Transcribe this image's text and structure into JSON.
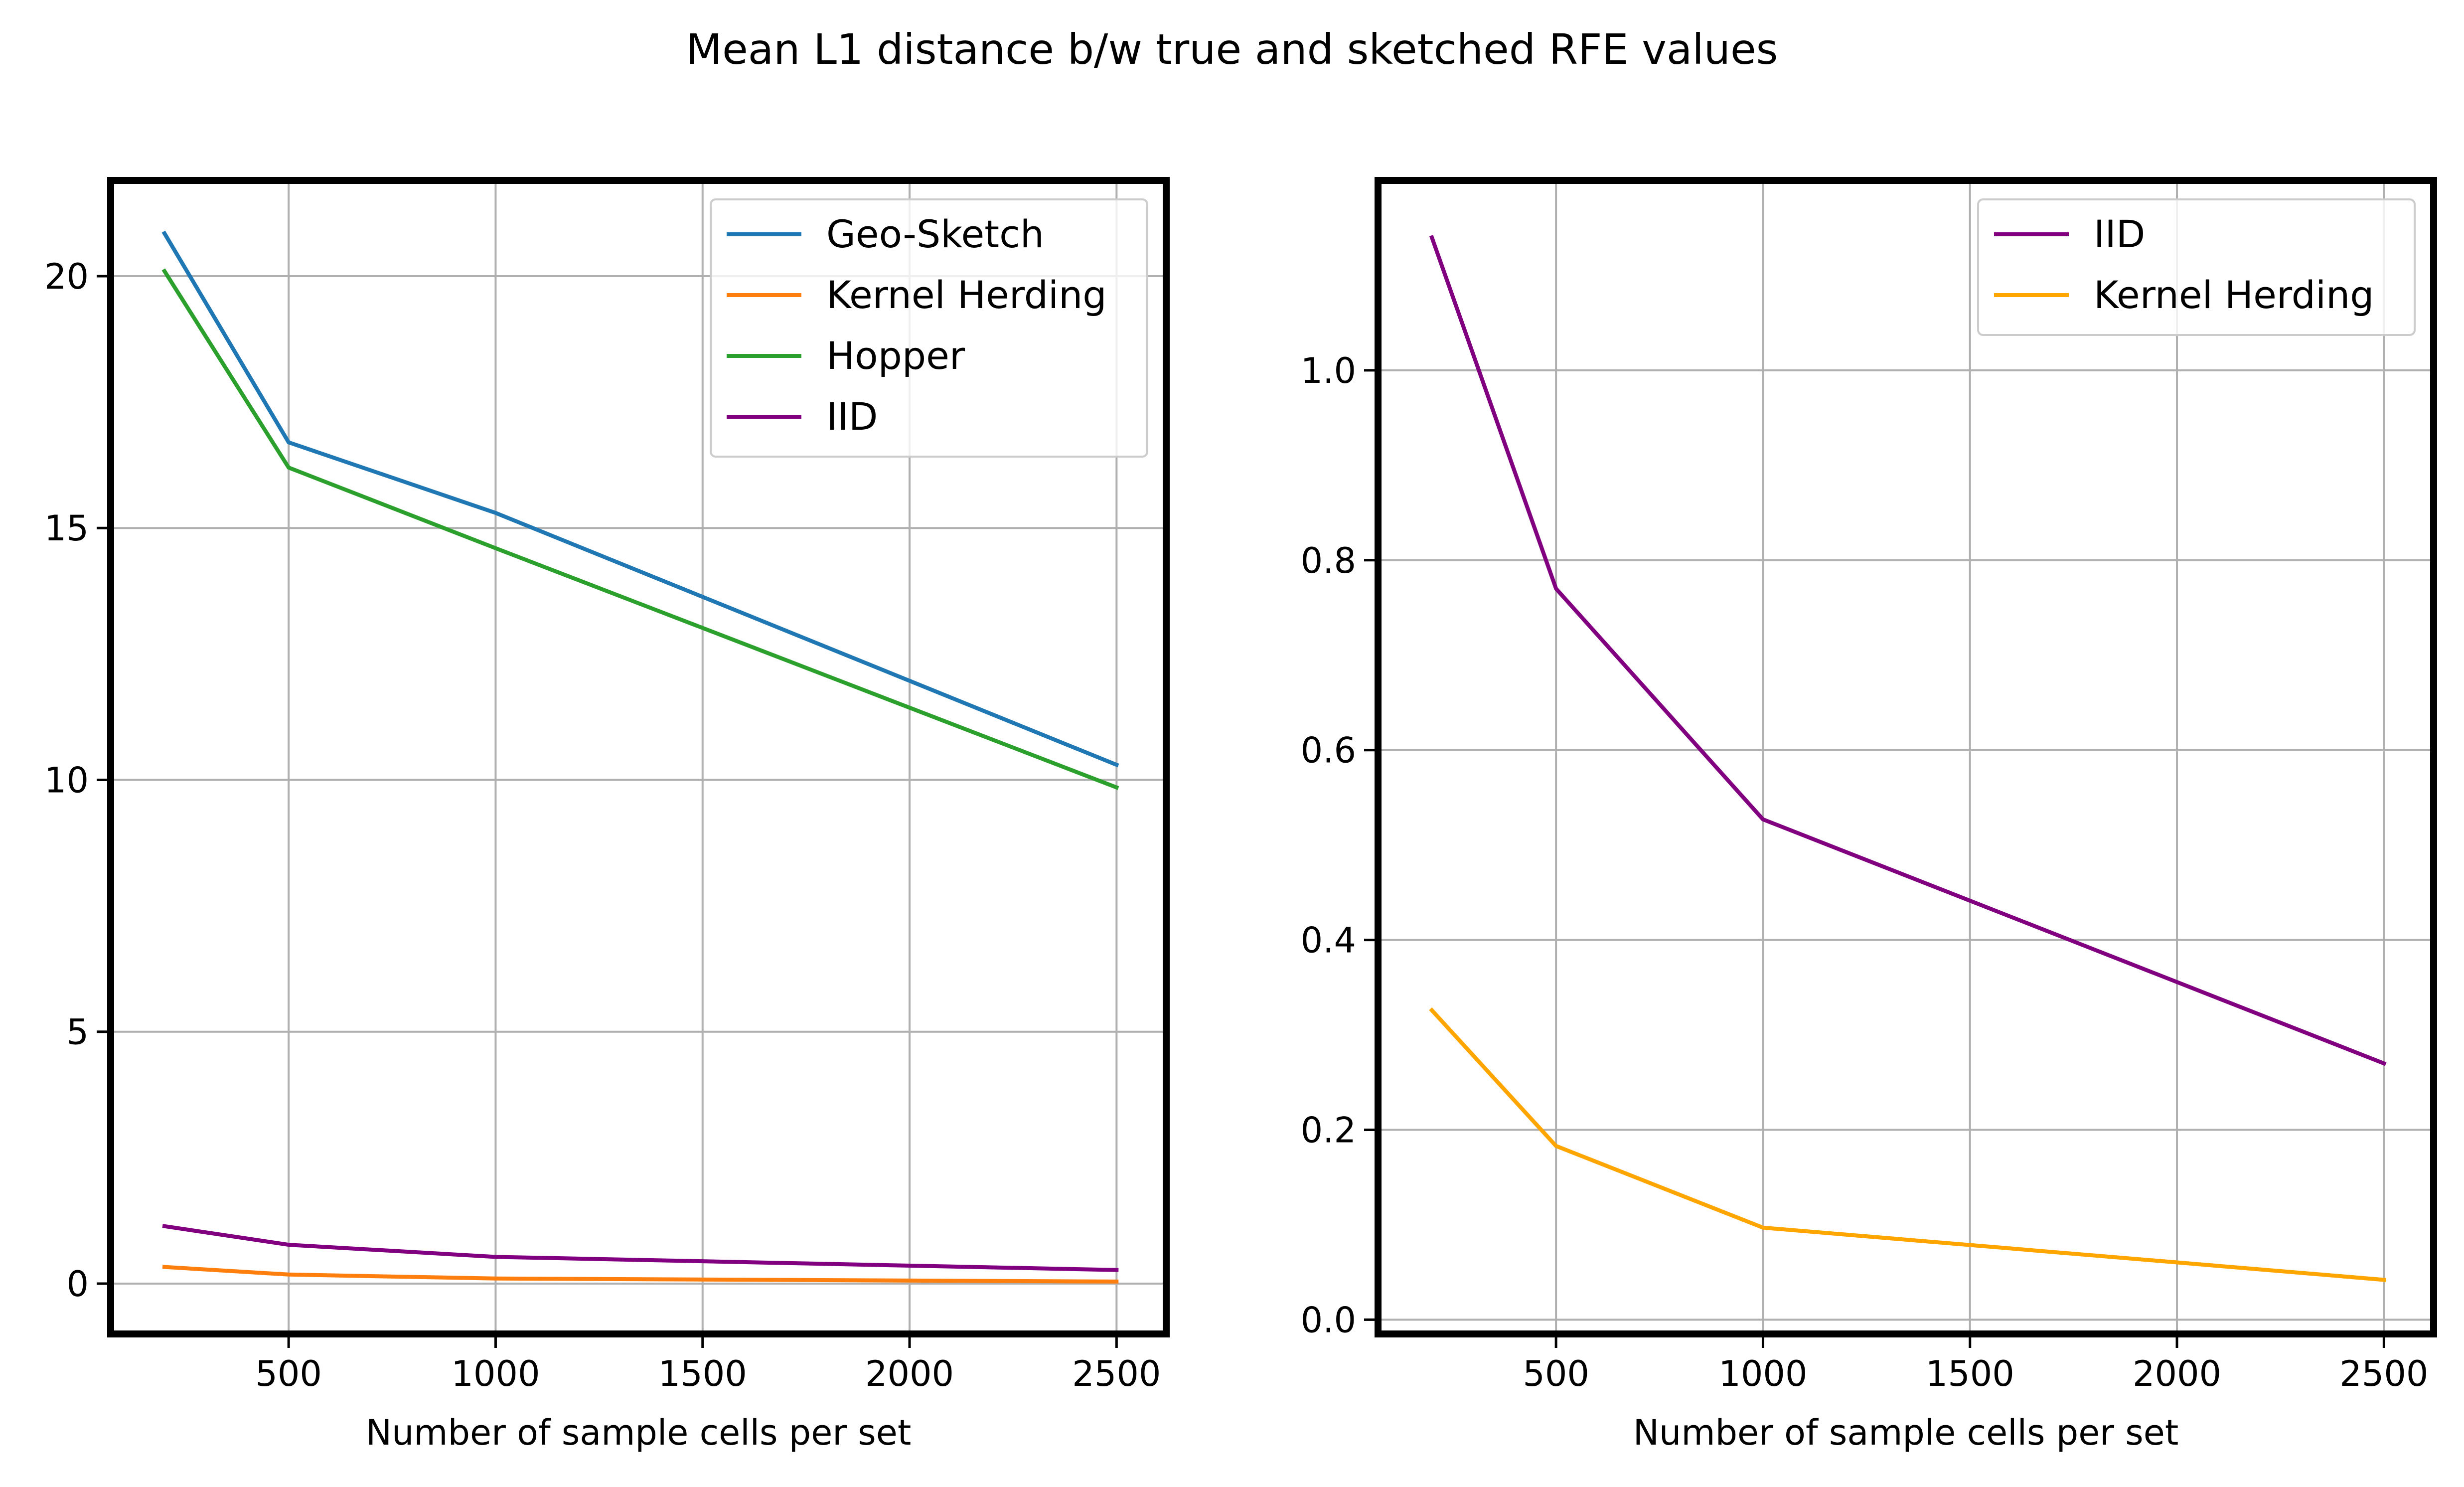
{
  "figure": {
    "suptitle": "Mean L1 distance b/w true and sketched RFE values"
  },
  "chart_data": [
    {
      "type": "line",
      "title": "",
      "xlabel": "Number of sample cells per set",
      "ylabel": "",
      "x": [
        200,
        500,
        1000,
        2500
      ],
      "xlim": [
        70,
        2620
      ],
      "ylim": [
        -1.0,
        21.9
      ],
      "xticks": [
        500,
        1000,
        1500,
        2000,
        2500
      ],
      "yticks": [
        0,
        5,
        10,
        15,
        20
      ],
      "xtick_labels": [
        "500",
        "1000",
        "1500",
        "2000",
        "2500"
      ],
      "ytick_labels": [
        "0",
        "5",
        "10",
        "15",
        "20"
      ],
      "grid": true,
      "legend_position": "top-right",
      "series": [
        {
          "name": "Geo-Sketch",
          "color": "#1f77b4",
          "values": [
            20.85,
            16.7,
            15.3,
            10.3
          ]
        },
        {
          "name": "Kernel Herding",
          "color": "#ff7f0e",
          "values": [
            0.33,
            0.18,
            0.1,
            0.04
          ]
        },
        {
          "name": "Hopper",
          "color": "#2ca02c",
          "values": [
            20.1,
            16.2,
            14.6,
            9.85
          ]
        },
        {
          "name": "IID",
          "color": "#800080",
          "values": [
            1.14,
            0.77,
            0.53,
            0.27
          ]
        }
      ]
    },
    {
      "type": "line",
      "title": "",
      "xlabel": "Number of sample cells per set",
      "ylabel": "",
      "x": [
        200,
        500,
        1000,
        2500
      ],
      "xlim": [
        70,
        2620
      ],
      "ylim": [
        -0.015,
        1.2
      ],
      "xticks": [
        500,
        1000,
        1500,
        2000,
        2500
      ],
      "yticks": [
        0.0,
        0.2,
        0.4,
        0.6,
        0.8,
        1.0
      ],
      "xtick_labels": [
        "500",
        "1000",
        "1500",
        "2000",
        "2500"
      ],
      "ytick_labels": [
        "0.0",
        "0.2",
        "0.4",
        "0.6",
        "0.8",
        "1.0"
      ],
      "grid": true,
      "legend_position": "top-right",
      "series": [
        {
          "name": "IID",
          "color": "#800080",
          "values": [
            1.14,
            0.77,
            0.527,
            0.27
          ]
        },
        {
          "name": "Kernel Herding",
          "color": "#ffa500",
          "values": [
            0.326,
            0.183,
            0.097,
            0.042
          ]
        }
      ]
    }
  ]
}
